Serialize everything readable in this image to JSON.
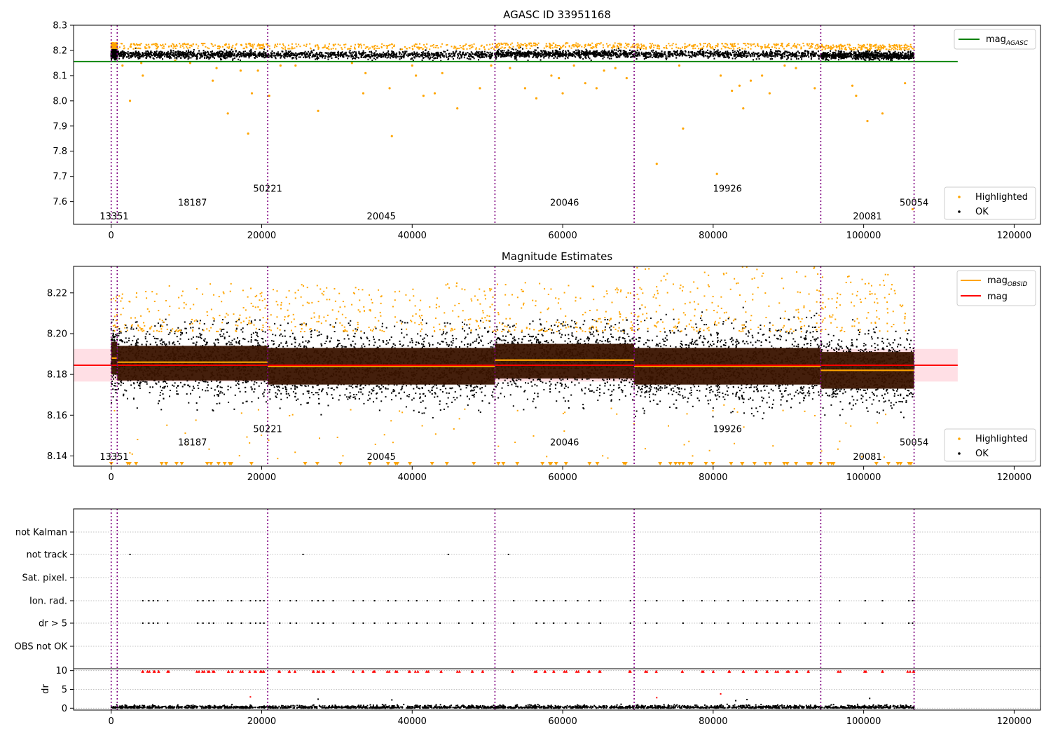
{
  "chart_data": [
    {
      "type": "scatter",
      "title": "AGASC ID 33951168",
      "xlim": [
        -5000,
        123500
      ],
      "ylim": [
        7.51,
        8.3
      ],
      "x_ticks": [
        0,
        20000,
        40000,
        60000,
        80000,
        100000,
        120000
      ],
      "y_ticks": [
        7.6,
        7.7,
        7.8,
        7.9,
        8.0,
        8.1,
        8.2,
        8.3
      ],
      "y_tick_labels": [
        "7.6",
        "7.7",
        "7.8",
        "7.9",
        "8.0",
        "8.1",
        "8.2",
        "8.3"
      ],
      "mag_agasc": 8.156,
      "mag_agasc_x_end": 112500,
      "obs_boundaries": [
        0,
        800,
        20800,
        51000,
        69500,
        94300,
        106700
      ],
      "obs_labels": [
        {
          "text": "13351",
          "x": 400,
          "y": 7.54
        },
        {
          "text": "18187",
          "x": 10800,
          "y": 7.595
        },
        {
          "text": "50221",
          "x": 20800,
          "y": 7.65
        },
        {
          "text": "20045",
          "x": 35900,
          "y": 7.54
        },
        {
          "text": "20046",
          "x": 60250,
          "y": 7.595
        },
        {
          "text": "19926",
          "x": 81900,
          "y": 7.65
        },
        {
          "text": "20081",
          "x": 100500,
          "y": 7.54
        },
        {
          "text": "50054",
          "x": 106700,
          "y": 7.595
        }
      ],
      "highlighted_outliers": [
        {
          "x": 1500,
          "y": 8.14
        },
        {
          "x": 2500,
          "y": 8.0
        },
        {
          "x": 4000,
          "y": 8.15
        },
        {
          "x": 4200,
          "y": 8.1
        },
        {
          "x": 8500,
          "y": 8.16
        },
        {
          "x": 10500,
          "y": 8.15
        },
        {
          "x": 13500,
          "y": 8.08
        },
        {
          "x": 14000,
          "y": 8.13
        },
        {
          "x": 15500,
          "y": 7.95
        },
        {
          "x": 17200,
          "y": 8.12
        },
        {
          "x": 18200,
          "y": 7.87
        },
        {
          "x": 18700,
          "y": 8.03
        },
        {
          "x": 19500,
          "y": 8.12
        },
        {
          "x": 21000,
          "y": 8.02
        },
        {
          "x": 22500,
          "y": 8.14
        },
        {
          "x": 24500,
          "y": 8.14
        },
        {
          "x": 27500,
          "y": 7.96
        },
        {
          "x": 32000,
          "y": 8.15
        },
        {
          "x": 33500,
          "y": 8.03
        },
        {
          "x": 33800,
          "y": 8.11
        },
        {
          "x": 37300,
          "y": 7.86
        },
        {
          "x": 37000,
          "y": 8.05
        },
        {
          "x": 40000,
          "y": 8.14
        },
        {
          "x": 40500,
          "y": 8.1
        },
        {
          "x": 41500,
          "y": 8.02
        },
        {
          "x": 43000,
          "y": 8.03
        },
        {
          "x": 44000,
          "y": 8.11
        },
        {
          "x": 46000,
          "y": 7.97
        },
        {
          "x": 49000,
          "y": 8.05
        },
        {
          "x": 50500,
          "y": 8.14
        },
        {
          "x": 53000,
          "y": 8.13
        },
        {
          "x": 55000,
          "y": 8.05
        },
        {
          "x": 56500,
          "y": 8.01
        },
        {
          "x": 58500,
          "y": 8.1
        },
        {
          "x": 59500,
          "y": 8.09
        },
        {
          "x": 60000,
          "y": 8.03
        },
        {
          "x": 61500,
          "y": 8.14
        },
        {
          "x": 63000,
          "y": 8.07
        },
        {
          "x": 64500,
          "y": 8.05
        },
        {
          "x": 65500,
          "y": 8.12
        },
        {
          "x": 67000,
          "y": 8.13
        },
        {
          "x": 68500,
          "y": 8.09
        },
        {
          "x": 72500,
          "y": 7.75
        },
        {
          "x": 75500,
          "y": 8.14
        },
        {
          "x": 76000,
          "y": 7.89
        },
        {
          "x": 80500,
          "y": 7.71
        },
        {
          "x": 81000,
          "y": 8.1
        },
        {
          "x": 82500,
          "y": 8.04
        },
        {
          "x": 83500,
          "y": 8.06
        },
        {
          "x": 84000,
          "y": 7.97
        },
        {
          "x": 85000,
          "y": 8.08
        },
        {
          "x": 86500,
          "y": 8.1
        },
        {
          "x": 87500,
          "y": 8.03
        },
        {
          "x": 89500,
          "y": 8.14
        },
        {
          "x": 91000,
          "y": 8.13
        },
        {
          "x": 93500,
          "y": 8.05
        },
        {
          "x": 98500,
          "y": 8.06
        },
        {
          "x": 99000,
          "y": 8.02
        },
        {
          "x": 100500,
          "y": 7.92
        },
        {
          "x": 102500,
          "y": 7.95
        },
        {
          "x": 105500,
          "y": 8.07
        },
        {
          "x": 106500,
          "y": 7.57
        }
      ],
      "legend_top": [
        {
          "name": "mag_AGASC",
          "color": "#008000",
          "style": "line"
        }
      ],
      "legend_bottom": [
        {
          "name": "Highlighted",
          "color": "#ffa500",
          "style": "dot"
        },
        {
          "name": "OK",
          "color": "#000000",
          "style": "dot"
        }
      ]
    },
    {
      "type": "scatter",
      "title": "Magnitude Estimates",
      "xlim": [
        -5000,
        123500
      ],
      "ylim": [
        8.135,
        8.233
      ],
      "x_ticks": [
        0,
        20000,
        40000,
        60000,
        80000,
        100000,
        120000
      ],
      "y_ticks": [
        8.14,
        8.16,
        8.18,
        8.2,
        8.22
      ],
      "y_tick_labels": [
        "8.14",
        "8.16",
        "8.18",
        "8.20",
        "8.22"
      ],
      "mag": 8.1845,
      "mag_band": [
        8.1765,
        8.1925
      ],
      "mag_x_end": 112500,
      "obs_boundaries": [
        0,
        800,
        20800,
        51000,
        69500,
        94300,
        106700
      ],
      "obsid_segments": [
        {
          "x0": 0,
          "x1": 800,
          "mag": 8.188,
          "band": [
            8.18,
            8.196
          ]
        },
        {
          "x0": 800,
          "x1": 20800,
          "mag": 8.186,
          "band": [
            8.177,
            8.194
          ]
        },
        {
          "x0": 20800,
          "x1": 51000,
          "mag": 8.184,
          "band": [
            8.175,
            8.193
          ]
        },
        {
          "x0": 51000,
          "x1": 69500,
          "mag": 8.187,
          "band": [
            8.178,
            8.195
          ]
        },
        {
          "x0": 69500,
          "x1": 94300,
          "mag": 8.184,
          "band": [
            8.175,
            8.193
          ]
        },
        {
          "x0": 94300,
          "x1": 106700,
          "mag": 8.182,
          "band": [
            8.173,
            8.191
          ]
        }
      ],
      "obs_labels": [
        {
          "text": "13351",
          "x": 400,
          "y": 8.1395
        },
        {
          "text": "18187",
          "x": 10800,
          "y": 8.1465
        },
        {
          "text": "50221",
          "x": 20800,
          "y": 8.153
        },
        {
          "text": "20045",
          "x": 35900,
          "y": 8.1395
        },
        {
          "text": "20046",
          "x": 60250,
          "y": 8.1465
        },
        {
          "text": "19926",
          "x": 81900,
          "y": 8.153
        },
        {
          "text": "20081",
          "x": 100500,
          "y": 8.1395
        },
        {
          "text": "50054",
          "x": 106700,
          "y": 8.1465
        }
      ],
      "legend_top": [
        {
          "name": "mag_OBSID",
          "color": "#ffa500",
          "style": "line"
        },
        {
          "name": "mag",
          "color": "#ff0000",
          "style": "line"
        }
      ],
      "legend_bottom": [
        {
          "name": "Highlighted",
          "color": "#ffa500",
          "style": "dot"
        },
        {
          "name": "OK",
          "color": "#000000",
          "style": "dot"
        }
      ]
    },
    {
      "type": "scatter",
      "title": "",
      "xlim": [
        -5000,
        123500
      ],
      "x_ticks": [
        0,
        20000,
        40000,
        60000,
        80000,
        100000,
        120000
      ],
      "flag_rows": [
        "not Kalman",
        "not track",
        "Sat. pixel.",
        "Ion. rad.",
        "dr > 5",
        "OBS not OK"
      ],
      "not_track_x": [
        2500,
        25500,
        44800,
        52800
      ],
      "ion_rad_x": [
        4200,
        5000,
        5600,
        6200,
        7500,
        11500,
        12200,
        13000,
        13600,
        15500,
        16000,
        17300,
        18500,
        19200,
        19800,
        20300,
        22400,
        23800,
        24600,
        26700,
        27500,
        28200,
        29500,
        32200,
        33500,
        35000,
        36800,
        37800,
        39500,
        40600,
        42000,
        43700,
        46200,
        48000,
        49500,
        53500,
        56500,
        57500,
        58800,
        60400,
        62000,
        63500,
        65000,
        69000,
        71000,
        72500,
        76000,
        78500,
        80200,
        82000,
        84000,
        85800,
        87200,
        88500,
        90000,
        91200,
        92800,
        96800,
        100200,
        102500,
        106000,
        106500
      ],
      "dr_ylim": [
        -0.5,
        10.5
      ],
      "dr_y_ticks": [
        0,
        5,
        10
      ],
      "dr_ylabel": "dr",
      "dr_high_points": [
        {
          "x": 18500,
          "y": 3.0
        },
        {
          "x": 27500,
          "y": 2.4
        },
        {
          "x": 37300,
          "y": 2.2
        },
        {
          "x": 72500,
          "y": 2.8
        },
        {
          "x": 81000,
          "y": 3.8
        },
        {
          "x": 83000,
          "y": 2.0
        },
        {
          "x": 84500,
          "y": 2.3
        },
        {
          "x": 100800,
          "y": 2.6
        }
      ],
      "obs_boundaries": [
        0,
        800,
        20800,
        51000,
        69500,
        94300,
        106700
      ]
    }
  ]
}
